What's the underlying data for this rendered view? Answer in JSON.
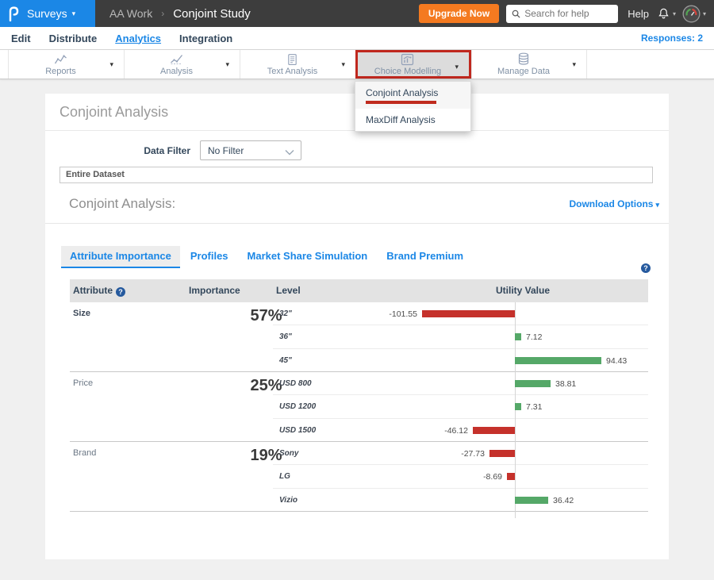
{
  "header": {
    "product": "Surveys",
    "breadcrumb": {
      "workspace": "AA Work",
      "separator": "›",
      "page": "Conjoint Study"
    },
    "upgrade_label": "Upgrade Now",
    "search_placeholder": "Search for help",
    "help_label": "Help"
  },
  "nav": {
    "items": [
      {
        "label": "Edit",
        "active": false
      },
      {
        "label": "Distribute",
        "active": false
      },
      {
        "label": "Analytics",
        "active": true
      },
      {
        "label": "Integration",
        "active": false
      }
    ],
    "responses_label": "Responses: 2"
  },
  "toolbar": {
    "items": [
      {
        "label": "Reports",
        "icon": "line-chart-icon",
        "selected": false
      },
      {
        "label": "Analysis",
        "icon": "trend-chart-icon",
        "selected": false
      },
      {
        "label": "Text Analysis",
        "icon": "document-icon",
        "selected": false
      },
      {
        "label": "Choice Modelling",
        "icon": "choice-chart-icon",
        "selected": true,
        "annotated": true
      },
      {
        "label": "Manage Data",
        "icon": "database-icon",
        "selected": false
      }
    ]
  },
  "dropdown": {
    "items": [
      {
        "label": "Conjoint Analysis",
        "highlighted": true,
        "annotated": true
      },
      {
        "label": "MaxDiff Analysis",
        "highlighted": false,
        "annotated": false
      }
    ]
  },
  "main": {
    "page_title": "Conjoint Analysis",
    "data_filter_label": "Data Filter",
    "data_filter_value": "No Filter",
    "dataset_value": "Entire Dataset",
    "section_title": "Conjoint Analysis:",
    "download_options_label": "Download Options",
    "tabs": [
      {
        "label": "Attribute Importance",
        "active": true
      },
      {
        "label": "Profiles",
        "active": false
      },
      {
        "label": "Market Share Simulation",
        "active": false
      },
      {
        "label": "Brand Premium",
        "active": false
      }
    ]
  },
  "table": {
    "headers": {
      "attribute": "Attribute",
      "importance": "Importance",
      "level": "Level",
      "utility": "Utility Value"
    }
  },
  "chart_data": {
    "type": "bar",
    "orientation": "horizontal",
    "title": "Conjoint Analysis — Attribute Importance & Utility Values",
    "positive_color": "#55a868",
    "negative_color": "#c5312b",
    "groups": [
      {
        "attribute": "Size",
        "importance": "57%",
        "bold": true,
        "levels": [
          {
            "label": "32\"",
            "utility": -101.55,
            "display": "-101.55"
          },
          {
            "label": "36\"",
            "utility": 7.12,
            "display": "7.12"
          },
          {
            "label": "45\"",
            "utility": 94.43,
            "display": "94.43"
          }
        ]
      },
      {
        "attribute": "Price",
        "importance": "25%",
        "bold": false,
        "levels": [
          {
            "label": "USD 800",
            "utility": 38.81,
            "display": "38.81"
          },
          {
            "label": "USD 1200",
            "utility": 7.31,
            "display": "7.31"
          },
          {
            "label": "USD 1500",
            "utility": -46.12,
            "display": "-46.12"
          }
        ]
      },
      {
        "attribute": "Brand",
        "importance": "19%",
        "bold": false,
        "levels": [
          {
            "label": "Sony",
            "utility": -27.73,
            "display": "-27.73"
          },
          {
            "label": "LG",
            "utility": -8.69,
            "display": "-8.69"
          },
          {
            "label": "Vizio",
            "utility": 36.42,
            "display": "36.42"
          }
        ]
      }
    ]
  },
  "colors": {
    "accent_blue": "#1b87e6",
    "brand_orange": "#f47a20",
    "annotation_red": "#c0281e",
    "topbar_bg": "#3d3d3d"
  }
}
